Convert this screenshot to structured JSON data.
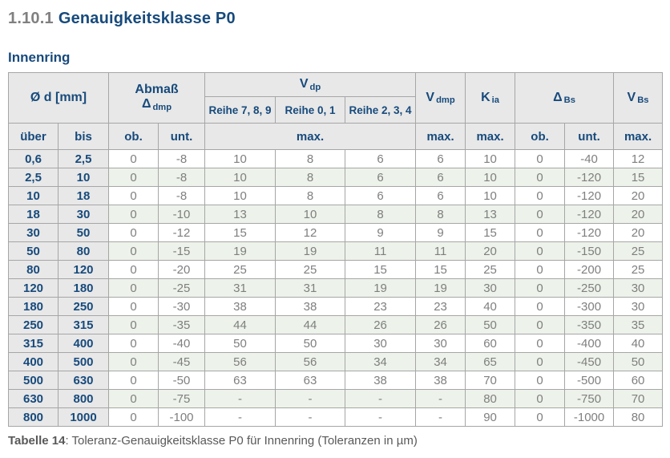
{
  "page": {
    "section_number": "1.10.1",
    "section_title": "Genauigkeitsklasse P0",
    "subtitle": "Innenring",
    "caption_label": "Tabelle 14",
    "caption_text": ": Toleranz-Genauigkeitsklasse P0 für Innenring (Toleranzen in µm)"
  },
  "colors": {
    "accent_blue": "#174a7c",
    "section_number_gray": "#808080",
    "header_bg": "#e8e8e8",
    "row_stripe_green": "#edf3ea",
    "data_text_gray": "#7f7f7f",
    "caption_gray": "#595959",
    "border_gray": "#a6a6a6"
  },
  "table": {
    "header": {
      "diameter": "Ø d  [mm]",
      "abmass_label": "Abmaß",
      "abmass_symbol": {
        "base": "Δ",
        "sub": "dmp"
      },
      "vdp": {
        "base": "V",
        "sub": "dp"
      },
      "reihe_789": "Reihe 7, 8, 9",
      "reihe_01": "Reihe 0, 1",
      "reihe_234": "Reihe 2, 3, 4",
      "vdmp": {
        "base": "V",
        "sub": "dmp"
      },
      "kia": {
        "base": "K",
        "sub": "ia"
      },
      "dbs": {
        "base": "Δ",
        "sub": "Bs"
      },
      "vbs": {
        "base": "V",
        "sub": "Bs"
      },
      "subheader": [
        "über",
        "bis",
        "ob.",
        "unt.",
        "max.",
        "max.",
        "max.",
        "ob.",
        "unt.",
        "max."
      ]
    },
    "rows": [
      [
        "0,6",
        "2,5",
        "0",
        "-8",
        "10",
        "8",
        "6",
        "6",
        "10",
        "0",
        "-40",
        "12"
      ],
      [
        "2,5",
        "10",
        "0",
        "-8",
        "10",
        "8",
        "6",
        "6",
        "10",
        "0",
        "-120",
        "15"
      ],
      [
        "10",
        "18",
        "0",
        "-8",
        "10",
        "8",
        "6",
        "6",
        "10",
        "0",
        "-120",
        "20"
      ],
      [
        "18",
        "30",
        "0",
        "-10",
        "13",
        "10",
        "8",
        "8",
        "13",
        "0",
        "-120",
        "20"
      ],
      [
        "30",
        "50",
        "0",
        "-12",
        "15",
        "12",
        "9",
        "9",
        "15",
        "0",
        "-120",
        "20"
      ],
      [
        "50",
        "80",
        "0",
        "-15",
        "19",
        "19",
        "11",
        "11",
        "20",
        "0",
        "-150",
        "25"
      ],
      [
        "80",
        "120",
        "0",
        "-20",
        "25",
        "25",
        "15",
        "15",
        "25",
        "0",
        "-200",
        "25"
      ],
      [
        "120",
        "180",
        "0",
        "-25",
        "31",
        "31",
        "19",
        "19",
        "30",
        "0",
        "-250",
        "30"
      ],
      [
        "180",
        "250",
        "0",
        "-30",
        "38",
        "38",
        "23",
        "23",
        "40",
        "0",
        "-300",
        "30"
      ],
      [
        "250",
        "315",
        "0",
        "-35",
        "44",
        "44",
        "26",
        "26",
        "50",
        "0",
        "-350",
        "35"
      ],
      [
        "315",
        "400",
        "0",
        "-40",
        "50",
        "50",
        "30",
        "30",
        "60",
        "0",
        "-400",
        "40"
      ],
      [
        "400",
        "500",
        "0",
        "-45",
        "56",
        "56",
        "34",
        "34",
        "65",
        "0",
        "-450",
        "50"
      ],
      [
        "500",
        "630",
        "0",
        "-50",
        "63",
        "63",
        "38",
        "38",
        "70",
        "0",
        "-500",
        "60"
      ],
      [
        "630",
        "800",
        "0",
        "-75",
        "-",
        "-",
        "-",
        "-",
        "80",
        "0",
        "-750",
        "70"
      ],
      [
        "800",
        "1000",
        "0",
        "-100",
        "-",
        "-",
        "-",
        "-",
        "90",
        "0",
        "-1000",
        "80"
      ]
    ]
  }
}
